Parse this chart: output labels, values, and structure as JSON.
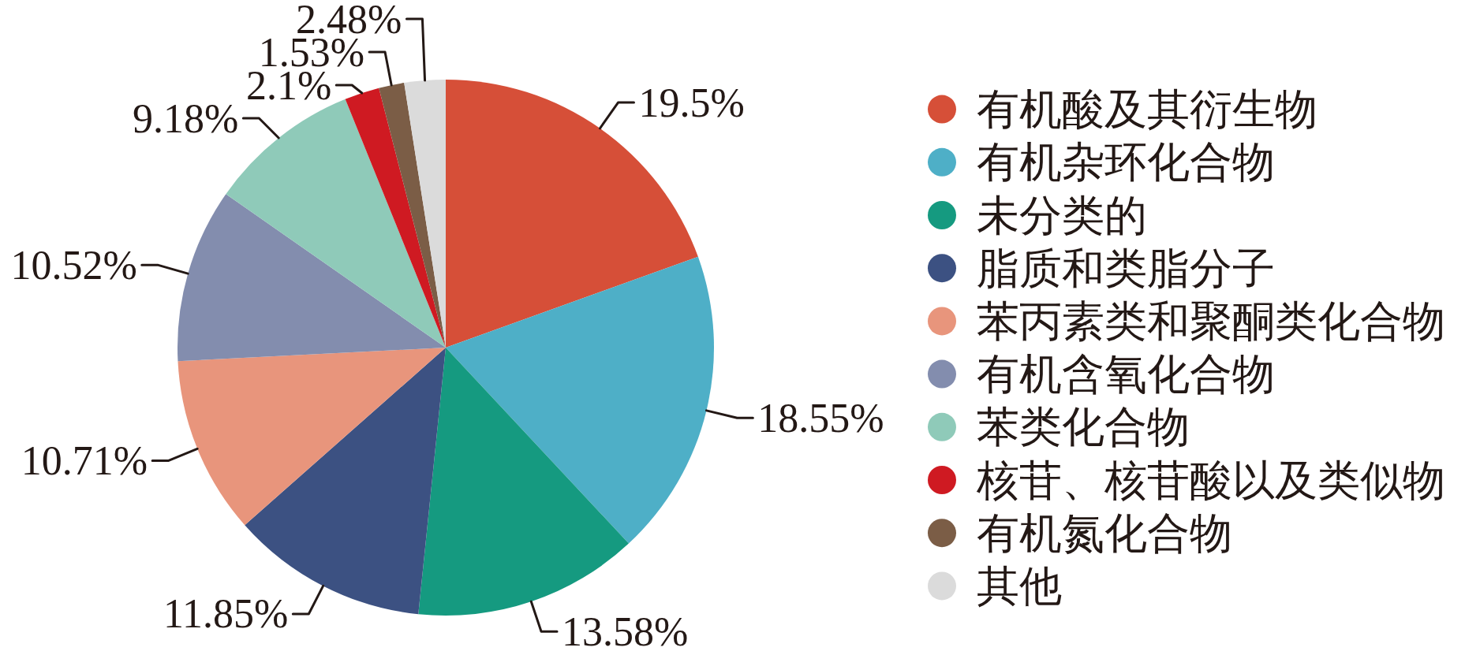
{
  "chart_data": {
    "type": "pie",
    "categories": [
      "有机酸及其衍生物",
      "有机杂环化合物",
      "未分类的",
      "脂质和类脂分子",
      "苯丙素类和聚酮类化合物",
      "有机含氧化合物",
      "苯类化合物",
      "核苷、核苷酸以及类似物",
      "有机氮化合物",
      "其他"
    ],
    "values": [
      19.5,
      18.55,
      13.58,
      11.85,
      10.71,
      10.52,
      9.18,
      2.1,
      1.53,
      2.48
    ],
    "colors": [
      "#d64f38",
      "#4eafc7",
      "#159a80",
      "#3c5182",
      "#e8957c",
      "#838dae",
      "#8fcab9",
      "#cf1a22",
      "#7b5d46",
      "#dbdbdb"
    ],
    "value_labels": [
      "19.5%",
      "18.55%",
      "13.58%",
      "11.85%",
      "10.71%",
      "10.52%",
      "9.18%",
      "2.1%",
      "1.53%",
      "2.48%"
    ],
    "legend": "right"
  }
}
